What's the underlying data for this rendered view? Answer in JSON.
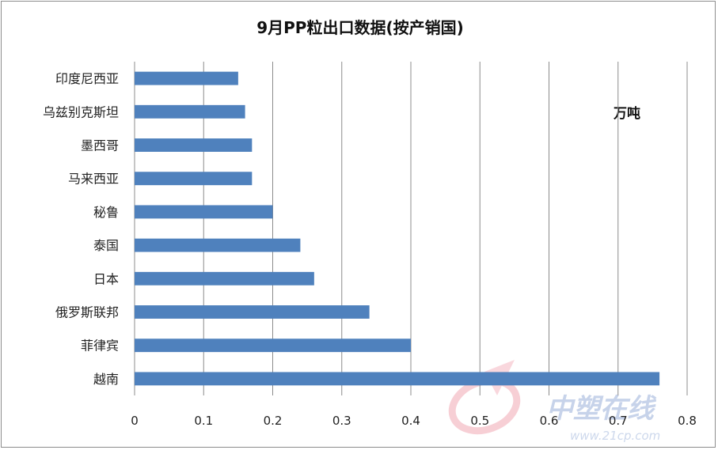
{
  "chart_data": {
    "type": "bar",
    "orientation": "horizontal",
    "title": "9月PP粒出口数据(按产销国)",
    "unit_label": "万吨",
    "categories": [
      "越南",
      "菲律宾",
      "俄罗斯联邦",
      "日本",
      "泰国",
      "秘鲁",
      "马来西亚",
      "墨西哥",
      "乌兹别克斯坦",
      "印度尼西亚"
    ],
    "values": [
      0.76,
      0.4,
      0.34,
      0.26,
      0.24,
      0.2,
      0.17,
      0.17,
      0.16,
      0.15
    ],
    "xlim": [
      0,
      0.8
    ],
    "xticks": [
      "0",
      "0.1",
      "0.2",
      "0.3",
      "0.4",
      "0.5",
      "0.6",
      "0.7",
      "0.8"
    ],
    "grid": "vertical",
    "legend": "none",
    "bar_color": "#4f81bd",
    "grid_color": "#8c8c8c"
  },
  "watermark": {
    "text": "中塑在线",
    "url": "www.21cp.com"
  }
}
